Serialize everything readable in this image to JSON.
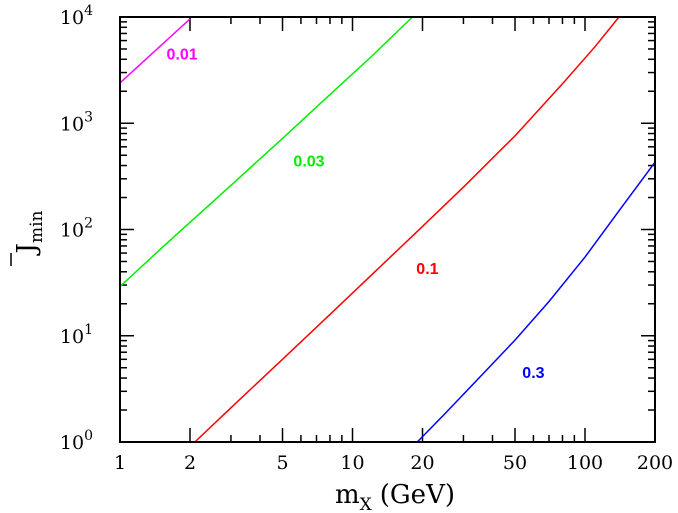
{
  "chart_data": {
    "type": "line",
    "xscale": "log",
    "yscale": "log",
    "xlim": [
      1,
      200
    ],
    "ylim": [
      1,
      10000
    ],
    "xlabel": {
      "main": "m",
      "sub": "X",
      "rest": "(GeV)"
    },
    "ylabel": {
      "main": "J",
      "sub": "min"
    },
    "x_ticks": [
      {
        "value": 1,
        "label": "1"
      },
      {
        "value": 2,
        "label": "2"
      },
      {
        "value": 5,
        "label": "5"
      },
      {
        "value": 10,
        "label": "10"
      },
      {
        "value": 20,
        "label": "20"
      },
      {
        "value": 50,
        "label": "50"
      },
      {
        "value": 100,
        "label": "100"
      },
      {
        "value": 200,
        "label": "200"
      }
    ],
    "y_ticks": [
      {
        "value": 1,
        "base": "10",
        "exp": "0"
      },
      {
        "value": 10,
        "base": "10",
        "exp": "1"
      },
      {
        "value": 100,
        "base": "10",
        "exp": "2"
      },
      {
        "value": 1000,
        "base": "10",
        "exp": "3"
      },
      {
        "value": 10000,
        "base": "10",
        "exp": "4"
      }
    ],
    "series": [
      {
        "name": "0.01",
        "color": "#ff00ff",
        "label_at": [
          1.85,
          4000
        ],
        "points": [
          [
            1.0,
            2400
          ],
          [
            1.3,
            4050
          ],
          [
            1.6,
            6140
          ],
          [
            2.0,
            9600
          ]
        ]
      },
      {
        "name": "0.03",
        "color": "#00ee00",
        "label_at": [
          6.5,
          390
        ],
        "points": [
          [
            1.0,
            29
          ],
          [
            1.5,
            66
          ],
          [
            2.0,
            117
          ],
          [
            3.0,
            260
          ],
          [
            5.0,
            720
          ],
          [
            8.0,
            1860
          ],
          [
            12.0,
            4200
          ],
          [
            18.0,
            9900
          ]
        ]
      },
      {
        "name": "0.1",
        "color": "#ff0000",
        "label_at": [
          21,
          38
        ],
        "points": [
          [
            2.1,
            1.0
          ],
          [
            3.0,
            2.1
          ],
          [
            5.0,
            6.0
          ],
          [
            8.0,
            15.9
          ],
          [
            12.0,
            36.8
          ],
          [
            20.0,
            107
          ],
          [
            30.0,
            250
          ],
          [
            50.0,
            760
          ],
          [
            80.0,
            2350
          ],
          [
            110.0,
            5200
          ],
          [
            140.0,
            10000
          ]
        ]
      },
      {
        "name": "0.3",
        "color": "#0000ff",
        "label_at": [
          60,
          4
        ],
        "points": [
          [
            19.0,
            1.0
          ],
          [
            25.0,
            1.85
          ],
          [
            35.0,
            4.0
          ],
          [
            50.0,
            9.1
          ],
          [
            70.0,
            21
          ],
          [
            100.0,
            55
          ],
          [
            140.0,
            150
          ],
          [
            200.0,
            430
          ]
        ]
      }
    ]
  }
}
